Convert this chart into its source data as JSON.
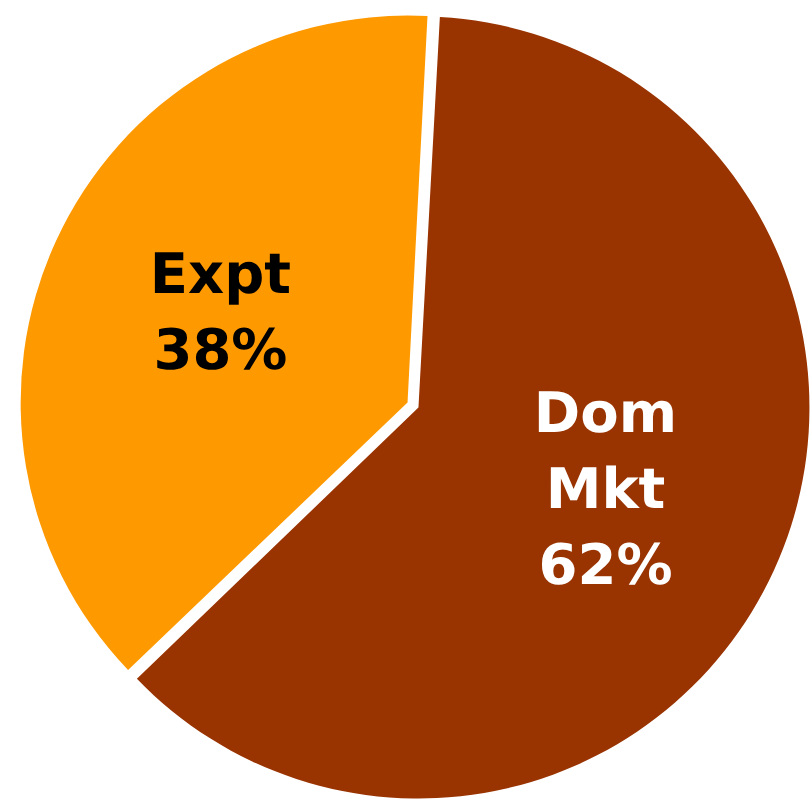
{
  "chart_data": {
    "type": "pie",
    "categories": [
      "Dom Mkt",
      "Expt"
    ],
    "values": [
      62,
      38
    ],
    "colors": [
      "#993300",
      "#ff9900"
    ],
    "value_labels": [
      "62%",
      "38%"
    ]
  }
}
